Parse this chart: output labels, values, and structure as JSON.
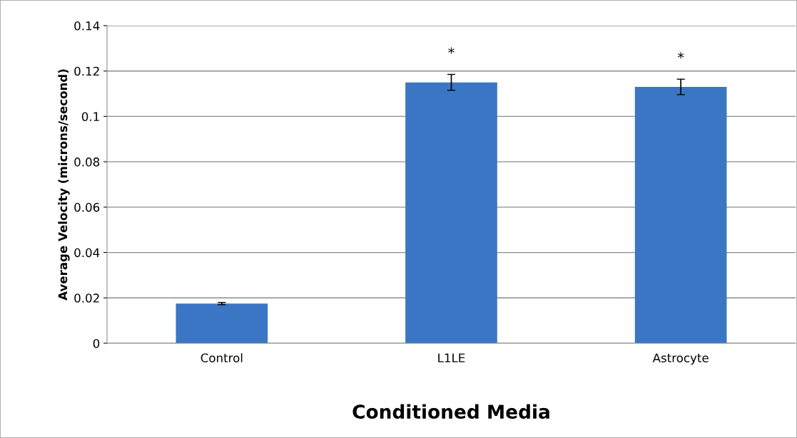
{
  "chart_data": {
    "type": "bar",
    "xlabel": "Conditioned Media",
    "ylabel": "Average Velocity (microns/second)",
    "categories": [
      "Control",
      "L1LE",
      "Astrocyte"
    ],
    "values": [
      0.0175,
      0.115,
      0.113
    ],
    "errors": [
      0.0005,
      0.0035,
      0.0034
    ],
    "color": "#3a76c4",
    "ylim": [
      0,
      0.14
    ],
    "yticks": [
      {
        "value": 0,
        "label": "0"
      },
      0.02,
      0.04,
      0.06,
      0.08,
      0.1,
      0.12,
      0.14
    ],
    "grid": "y",
    "annotations": [
      "*",
      "*"
    ]
  }
}
